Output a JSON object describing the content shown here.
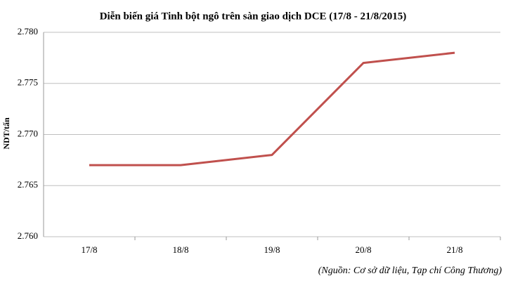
{
  "chart_data": {
    "type": "line",
    "title": "Diễn biến giá Tinh bột ngô trên sàn giao dịch DCE (17/8 - 21/8/2015)",
    "y_label": "NDT/tấn",
    "categories": [
      "17/8",
      "18/8",
      "19/8",
      "20/8",
      "21/8"
    ],
    "series": [
      {
        "name": "Tinh bột ngô",
        "color": "#c0504d",
        "values": [
          2767,
          2767,
          2768,
          2777,
          2778
        ]
      }
    ],
    "ylim": [
      2760,
      2780
    ],
    "yticks": [
      {
        "value": 2760,
        "label": "2.760"
      },
      {
        "value": 2765,
        "label": "2.765"
      },
      {
        "value": 2770,
        "label": "2.770"
      },
      {
        "value": 2775,
        "label": "2.775"
      },
      {
        "value": 2780,
        "label": "2.780"
      }
    ],
    "grid": true,
    "note": "(Nguồn: Cơ sở dữ liệu, Tạp chí Công Thương)"
  }
}
